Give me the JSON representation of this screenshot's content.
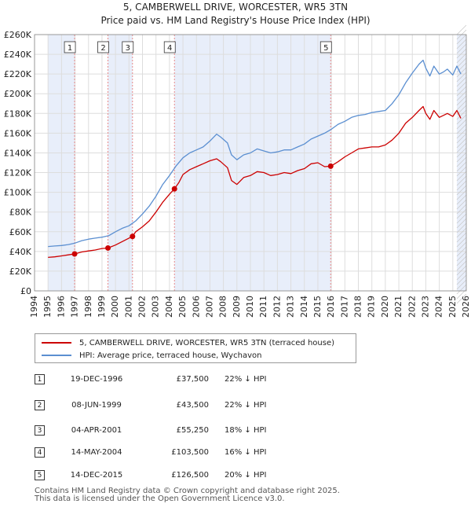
{
  "colors": {
    "property": "#cc0000",
    "hpi": "#5b8fd1",
    "band": "#e8eefa",
    "grid": "#dddddd",
    "marker_line": "#e88a8a"
  },
  "chart_data": {
    "type": "line",
    "title": "5, CAMBERWELL DRIVE, WORCESTER, WR5 3TN",
    "subtitle": "Price paid vs. HM Land Registry's House Price Index (HPI)",
    "xlim": [
      1994,
      2026
    ],
    "ylim": [
      0,
      260000
    ],
    "y_ticks": [
      0,
      20000,
      40000,
      60000,
      80000,
      100000,
      120000,
      140000,
      160000,
      180000,
      200000,
      220000,
      240000,
      260000
    ],
    "y_tick_labels": [
      "£0",
      "£20K",
      "£40K",
      "£60K",
      "£80K",
      "£100K",
      "£120K",
      "£140K",
      "£160K",
      "£180K",
      "£200K",
      "£220K",
      "£240K",
      "£260K"
    ],
    "x_ticks": [
      1994,
      1995,
      1996,
      1997,
      1998,
      1999,
      2000,
      2001,
      2002,
      2003,
      2004,
      2005,
      2006,
      2007,
      2008,
      2009,
      2010,
      2011,
      2012,
      2013,
      2014,
      2015,
      2016,
      2017,
      2018,
      2019,
      2020,
      2021,
      2022,
      2023,
      2024,
      2025,
      2026
    ],
    "x_tick_labels": [
      "1994",
      "1995",
      "1996",
      "1997",
      "1998",
      "1999",
      "2000",
      "2001",
      "2002",
      "2003",
      "2004",
      "2005",
      "2006",
      "2007",
      "2008",
      "2009",
      "2010",
      "2011",
      "2012",
      "2013",
      "2014",
      "2015",
      "2016",
      "2017",
      "2018",
      "2019",
      "2020",
      "2021",
      "2022",
      "2023",
      "2024",
      "2025",
      "2026"
    ],
    "shaded_ranges": [
      [
        1995,
        1996.97
      ],
      [
        1999.44,
        2001.26
      ],
      [
        2004.37,
        2015.95
      ],
      [
        2025.3,
        2026
      ]
    ],
    "sales": [
      {
        "num": "1",
        "x": 1996.97,
        "y": 37500
      },
      {
        "num": "2",
        "x": 1999.44,
        "y": 43500
      },
      {
        "num": "3",
        "x": 2001.26,
        "y": 55250
      },
      {
        "num": "4",
        "x": 2004.37,
        "y": 103500
      },
      {
        "num": "5",
        "x": 2015.95,
        "y": 126500
      }
    ],
    "series": [
      {
        "name": "5, CAMBERWELL DRIVE, WORCESTER, WR5 3TN (terraced house)",
        "color": "#cc0000",
        "x": [
          1995.0,
          1995.5,
          1996.0,
          1996.5,
          1996.97,
          1997.5,
          1998.0,
          1998.5,
          1999.0,
          1999.44,
          2000.0,
          2000.5,
          2001.0,
          2001.26,
          2001.5,
          2002.0,
          2002.5,
          2003.0,
          2003.5,
          2004.0,
          2004.37,
          2004.7,
          2005.0,
          2005.5,
          2006.0,
          2006.5,
          2007.0,
          2007.5,
          2007.8,
          2008.3,
          2008.6,
          2009.0,
          2009.5,
          2010.0,
          2010.5,
          2011.0,
          2011.5,
          2012.0,
          2012.5,
          2013.0,
          2013.5,
          2014.0,
          2014.5,
          2015.0,
          2015.5,
          2015.95,
          2016.5,
          2017.0,
          2017.5,
          2018.0,
          2018.5,
          2019.0,
          2019.5,
          2020.0,
          2020.5,
          2021.0,
          2021.5,
          2022.0,
          2022.5,
          2022.8,
          2023.0,
          2023.3,
          2023.6,
          2024.0,
          2024.3,
          2024.6,
          2025.0,
          2025.3,
          2025.6
        ],
        "y": [
          34000,
          34500,
          35500,
          36500,
          37500,
          39500,
          40500,
          41500,
          43000,
          43500,
          46500,
          50000,
          53500,
          55250,
          60000,
          65000,
          71000,
          80000,
          90000,
          98000,
          103500,
          110000,
          118000,
          123000,
          126000,
          129000,
          132000,
          134000,
          131000,
          125000,
          112000,
          108000,
          115000,
          117000,
          121000,
          120000,
          117000,
          118000,
          120000,
          119000,
          122000,
          124000,
          129000,
          130000,
          126000,
          126500,
          131000,
          136000,
          140000,
          144000,
          145000,
          146000,
          146000,
          148000,
          153000,
          160000,
          170000,
          176000,
          183000,
          187000,
          180000,
          174000,
          183000,
          176000,
          178000,
          180000,
          177000,
          183000,
          175000
        ]
      },
      {
        "name": "HPI: Average price, terraced house, Wychavon",
        "color": "#5b8fd1",
        "x": [
          1995.0,
          1995.5,
          1996.0,
          1996.5,
          1997.0,
          1997.5,
          1998.0,
          1998.5,
          1999.0,
          1999.5,
          2000.0,
          2000.5,
          2001.0,
          2001.5,
          2002.0,
          2002.5,
          2003.0,
          2003.5,
          2004.0,
          2004.5,
          2005.0,
          2005.5,
          2006.0,
          2006.5,
          2007.0,
          2007.5,
          2007.8,
          2008.3,
          2008.6,
          2009.0,
          2009.5,
          2010.0,
          2010.5,
          2011.0,
          2011.5,
          2012.0,
          2012.5,
          2013.0,
          2013.5,
          2014.0,
          2014.5,
          2015.0,
          2015.5,
          2016.0,
          2016.5,
          2017.0,
          2017.5,
          2018.0,
          2018.5,
          2019.0,
          2019.5,
          2020.0,
          2020.5,
          2021.0,
          2021.5,
          2022.0,
          2022.5,
          2022.8,
          2023.0,
          2023.3,
          2023.6,
          2024.0,
          2024.3,
          2024.6,
          2025.0,
          2025.3,
          2025.6
        ],
        "y": [
          45000,
          45500,
          46000,
          47000,
          48500,
          51000,
          52500,
          53500,
          54500,
          56000,
          60000,
          63500,
          66000,
          71000,
          78000,
          86000,
          96000,
          108000,
          117000,
          127000,
          135000,
          140000,
          143000,
          146000,
          152000,
          159000,
          156000,
          150000,
          138000,
          133000,
          138000,
          140000,
          144000,
          142000,
          140000,
          141000,
          143000,
          143000,
          146000,
          149000,
          154000,
          157000,
          160000,
          164000,
          169000,
          172000,
          176000,
          178000,
          179000,
          181000,
          182000,
          183000,
          190000,
          199000,
          211000,
          221000,
          230000,
          234000,
          226000,
          218000,
          228000,
          220000,
          222000,
          225000,
          219000,
          228000,
          220000
        ]
      }
    ]
  },
  "legend": {
    "property_label": "5, CAMBERWELL DRIVE, WORCESTER, WR5 3TN (terraced house)",
    "hpi_label": "HPI: Average price, terraced house, Wychavon"
  },
  "transactions": [
    {
      "num": "1",
      "date": "19-DEC-1996",
      "price": "£37,500",
      "hpi": "22% ↓ HPI"
    },
    {
      "num": "2",
      "date": "08-JUN-1999",
      "price": "£43,500",
      "hpi": "22% ↓ HPI"
    },
    {
      "num": "3",
      "date": "04-APR-2001",
      "price": "£55,250",
      "hpi": "18% ↓ HPI"
    },
    {
      "num": "4",
      "date": "14-MAY-2004",
      "price": "£103,500",
      "hpi": "16% ↓ HPI"
    },
    {
      "num": "5",
      "date": "14-DEC-2015",
      "price": "£126,500",
      "hpi": "20% ↓ HPI"
    }
  ],
  "footer": {
    "line1": "Contains HM Land Registry data © Crown copyright and database right 2025.",
    "line2": "This data is licensed under the Open Government Licence v3.0."
  }
}
